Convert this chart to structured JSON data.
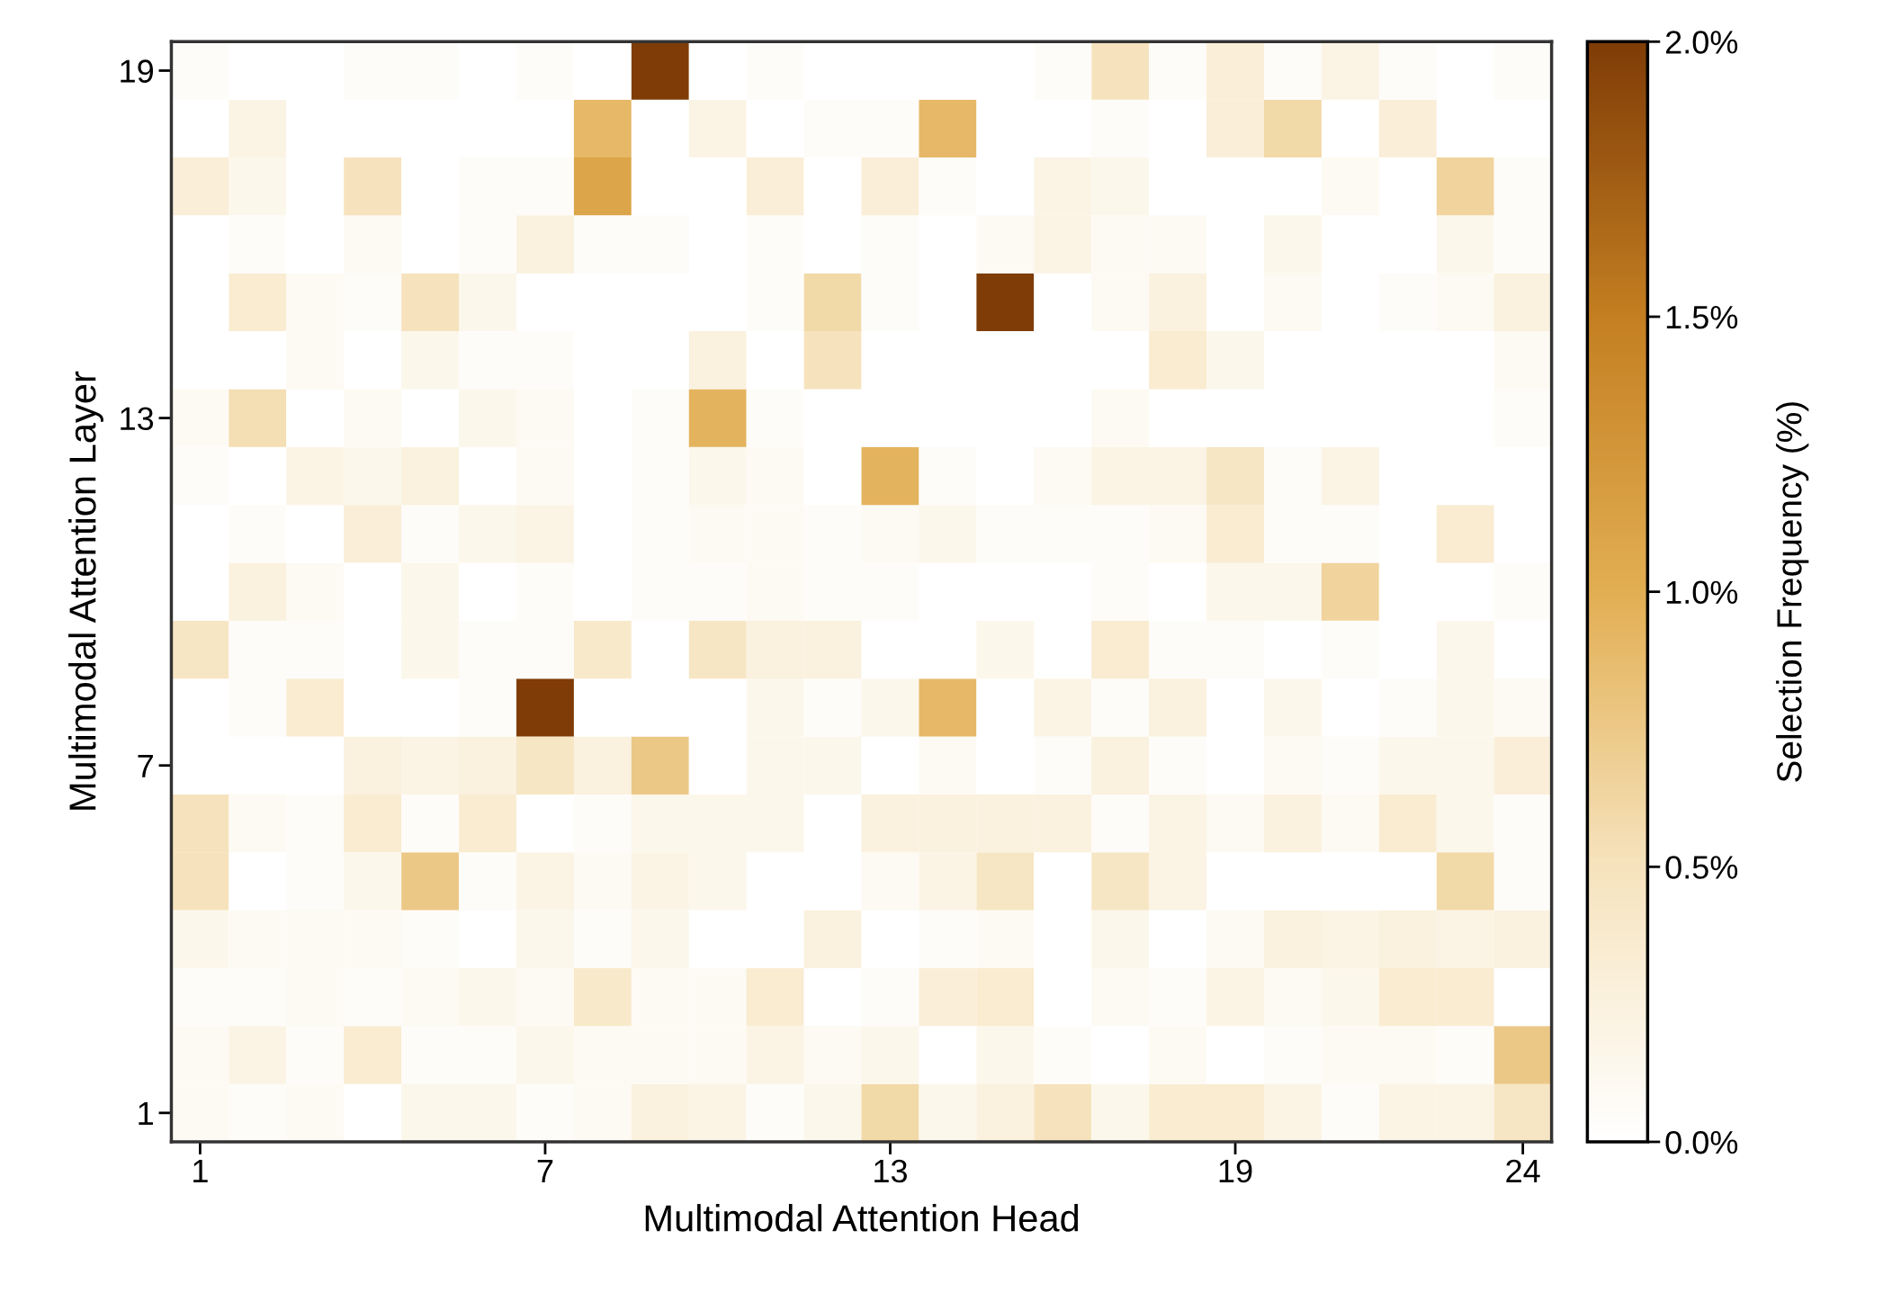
{
  "chart_data": {
    "type": "heatmap",
    "xlabel": "Multimodal Attention Head",
    "ylabel": "Multimodal Attention Layer",
    "clabel": "Selection Frequency (%)",
    "categories": [
      "1",
      null,
      null,
      null,
      null,
      null,
      "7",
      null,
      null,
      null,
      null,
      null,
      "13",
      null,
      null,
      null,
      null,
      null,
      "19",
      null,
      null,
      null,
      null,
      "24"
    ],
    "y_categories": [
      "19",
      null,
      null,
      null,
      null,
      null,
      "13",
      null,
      null,
      null,
      null,
      null,
      "7",
      null,
      null,
      null,
      null,
      null,
      "1"
    ],
    "cells": [
      [
        0.05,
        0,
        0,
        0.05,
        0.05,
        0,
        0.05,
        0,
        2.0,
        0,
        0.05,
        0,
        0,
        0,
        0,
        0.05,
        0.5,
        0.05,
        0.3,
        0.05,
        0.2,
        0.05,
        0,
        0.05
      ],
      [
        0,
        0.2,
        0,
        0,
        0,
        0,
        0,
        0.9,
        0,
        0.2,
        0,
        0.05,
        0.05,
        0.9,
        0,
        0,
        0.05,
        0,
        0.3,
        0.6,
        0,
        0.3,
        0,
        0
      ],
      [
        0.3,
        0.15,
        0,
        0.5,
        0,
        0.05,
        0.05,
        1.1,
        0,
        0,
        0.3,
        0,
        0.3,
        0.05,
        0,
        0.2,
        0.15,
        0,
        0,
        0,
        0.1,
        0,
        0.65,
        0.05
      ],
      [
        0,
        0.05,
        0,
        0.1,
        0,
        0.05,
        0.25,
        0.05,
        0.05,
        0,
        0.05,
        0,
        0.05,
        0,
        0.1,
        0.2,
        0.1,
        0.1,
        0,
        0.15,
        0,
        0,
        0.15,
        0.05
      ],
      [
        0,
        0.35,
        0.1,
        0.05,
        0.5,
        0.15,
        0,
        0,
        0,
        0,
        0.05,
        0.6,
        0.05,
        0,
        2.0,
        0,
        0.1,
        0.25,
        0,
        0.1,
        0,
        0.05,
        0.1,
        0.25
      ],
      [
        0,
        0,
        0.1,
        0,
        0.15,
        0.05,
        0.05,
        0,
        0,
        0.25,
        0,
        0.5,
        0,
        0,
        0,
        0,
        0,
        0.35,
        0.15,
        0,
        0,
        0,
        0,
        0.1
      ],
      [
        0.1,
        0.55,
        0,
        0.1,
        0,
        0.15,
        0.1,
        0,
        0.05,
        0.95,
        0.05,
        0,
        0,
        0,
        0,
        0,
        0.1,
        0,
        0,
        0,
        0,
        0,
        0,
        0.05
      ],
      [
        0.05,
        0,
        0.2,
        0.15,
        0.25,
        0,
        0.1,
        0,
        0.05,
        0.15,
        0.1,
        0,
        0.95,
        0.05,
        0,
        0.1,
        0.2,
        0.2,
        0.45,
        0.05,
        0.2,
        0,
        0,
        0
      ],
      [
        0,
        0.05,
        0,
        0.3,
        0.05,
        0.15,
        0.2,
        0,
        0.05,
        0.1,
        0.1,
        0.05,
        0.1,
        0.15,
        0.05,
        0.05,
        0.05,
        0.1,
        0.35,
        0.05,
        0.05,
        0,
        0.35,
        0
      ],
      [
        0,
        0.25,
        0.1,
        0,
        0.15,
        0,
        0.05,
        0,
        0.05,
        0.05,
        0.1,
        0.05,
        0.05,
        0,
        0,
        0,
        0.05,
        0,
        0.15,
        0.15,
        0.65,
        0,
        0,
        0.05
      ],
      [
        0.45,
        0.05,
        0.05,
        0,
        0.15,
        0.05,
        0.05,
        0.4,
        0,
        0.45,
        0.25,
        0.25,
        0,
        0,
        0.15,
        0,
        0.35,
        0.05,
        0.05,
        0,
        0.05,
        0,
        0.15,
        0
      ],
      [
        0,
        0.05,
        0.35,
        0,
        0,
        0.05,
        2.0,
        0,
        0,
        0,
        0.15,
        0.05,
        0.15,
        0.9,
        0,
        0.2,
        0.05,
        0.25,
        0,
        0.15,
        0,
        0.05,
        0.15,
        0.1
      ],
      [
        0,
        0,
        0,
        0.25,
        0.2,
        0.25,
        0.45,
        0.25,
        0.75,
        0,
        0.15,
        0.15,
        0,
        0.1,
        0,
        0.05,
        0.25,
        0.05,
        0,
        0.1,
        0.05,
        0.15,
        0.15,
        0.3
      ],
      [
        0.5,
        0.1,
        0.05,
        0.35,
        0.05,
        0.35,
        0,
        0.05,
        0.15,
        0.15,
        0.15,
        0,
        0.25,
        0.25,
        0.25,
        0.25,
        0.05,
        0.2,
        0.1,
        0.25,
        0.1,
        0.35,
        0.15,
        0.05
      ],
      [
        0.5,
        0,
        0.05,
        0.15,
        0.75,
        0.05,
        0.2,
        0.1,
        0.2,
        0.15,
        0,
        0,
        0.1,
        0.2,
        0.45,
        0,
        0.45,
        0.2,
        0,
        0,
        0,
        0,
        0.6,
        0.05
      ],
      [
        0.15,
        0.1,
        0.1,
        0.1,
        0.05,
        0,
        0.15,
        0.05,
        0.15,
        0,
        0,
        0.25,
        0,
        0.05,
        0.1,
        0,
        0.15,
        0,
        0.1,
        0.25,
        0.2,
        0.25,
        0.2,
        0.25
      ],
      [
        0.05,
        0.05,
        0.1,
        0.05,
        0.1,
        0.15,
        0.1,
        0.4,
        0.1,
        0.1,
        0.35,
        0,
        0.05,
        0.3,
        0.35,
        0,
        0.1,
        0.05,
        0.2,
        0.1,
        0.15,
        0.35,
        0.35,
        0
      ],
      [
        0.1,
        0.2,
        0.05,
        0.35,
        0.05,
        0.05,
        0.15,
        0.1,
        0.1,
        0.1,
        0.2,
        0.1,
        0.15,
        0,
        0.15,
        0.05,
        0,
        0.1,
        0,
        0.05,
        0.1,
        0.1,
        0.05,
        0.75
      ],
      [
        0.1,
        0.05,
        0.1,
        0,
        0.15,
        0.15,
        0.05,
        0.1,
        0.25,
        0.2,
        0.05,
        0.15,
        0.6,
        0.15,
        0.25,
        0.5,
        0.15,
        0.35,
        0.35,
        0.2,
        0.05,
        0.2,
        0.2,
        0.45
      ]
    ],
    "clim": [
      0,
      2.0
    ],
    "cticks": [
      {
        "value": 0,
        "label": "0.0%"
      },
      {
        "value": 0.5,
        "label": "0.5%"
      },
      {
        "value": 1.0,
        "label": "1.0%"
      },
      {
        "value": 1.5,
        "label": "1.5%"
      },
      {
        "value": 2.0,
        "label": "2.0%"
      }
    ]
  }
}
